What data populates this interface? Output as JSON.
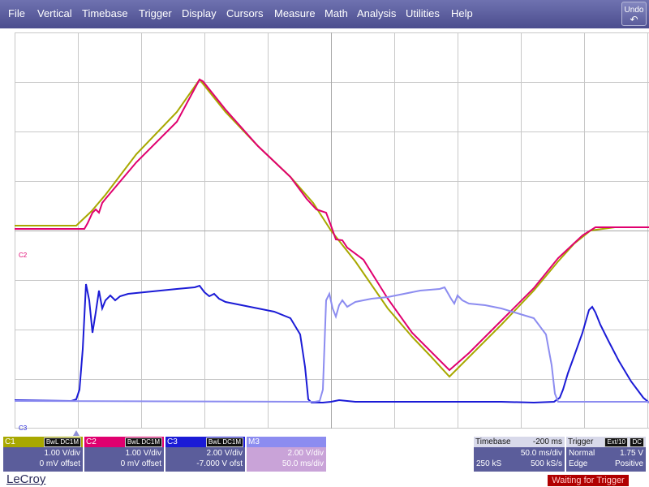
{
  "menu": {
    "items": [
      "File",
      "Vertical",
      "Timebase",
      "Trigger",
      "Display",
      "Cursors",
      "Measure",
      "Math",
      "Analysis",
      "Utilities",
      "Help"
    ],
    "undo_label": "Undo"
  },
  "markers": {
    "c2": "C2",
    "c3": "C3"
  },
  "channels": {
    "c1": {
      "name": "C1",
      "tags": "BwL DC1M",
      "vdiv": "1.00 V/div",
      "offset": "0 mV offset",
      "color": "#a8a800"
    },
    "c2": {
      "name": "C2",
      "tags": "BwL DC1M",
      "vdiv": "1.00 V/div",
      "offset": "0 mV offset",
      "color": "#e0006f"
    },
    "c3": {
      "name": "C3",
      "tags": "BwL DC1M",
      "vdiv": "2.00 V/div",
      "offset": "-7.000 V ofst",
      "color": "#1b1bd6"
    },
    "m3": {
      "name": "M3",
      "vdiv": "2.00 V/div",
      "tdiv": "50.0 ms/div",
      "color": "#8c8cf0"
    }
  },
  "timebase": {
    "label": "Timebase",
    "delay": "-200 ms",
    "tdiv": "50.0 ms/div",
    "samples": "250 kS",
    "rate": "500 kS/s"
  },
  "trigger": {
    "label": "Trigger",
    "source": "Ext/10",
    "coupling": "DC",
    "mode": "Normal",
    "level": "1.75 V",
    "type": "Edge",
    "slope": "Positive"
  },
  "brand": "LeCroy",
  "status": "Waiting for Trigger",
  "colors": {
    "menubar": "#5b5d9b",
    "panel": "#5b5d9b",
    "status_bg": "#b00000"
  }
}
